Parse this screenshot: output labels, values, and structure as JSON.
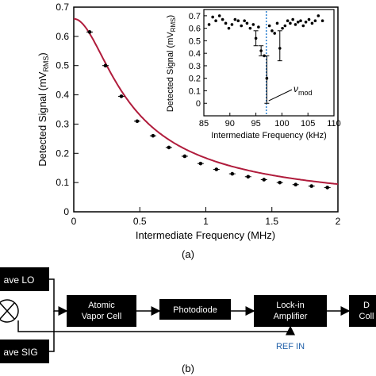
{
  "chart_data": [
    {
      "type": "scatter",
      "panel": "main",
      "xlabel": "Intermediate Frequency (MHz)",
      "ylabel_main": "Detected Signal (mV",
      "ylabel_sub": "RMS",
      "ylabel_close": ")",
      "xlim": [
        0,
        2
      ],
      "ylim": [
        0,
        0.7
      ],
      "xticks": [
        "0",
        "0.5",
        "1",
        "1.5",
        "2"
      ],
      "yticks": [
        "0",
        "0.1",
        "0.2",
        "0.3",
        "0.4",
        "0.5",
        "0.6",
        "0.7"
      ],
      "series": [
        {
          "points": [
            {
              "x": 0.12,
              "y": 0.615
            },
            {
              "x": 0.24,
              "y": 0.5
            },
            {
              "x": 0.36,
              "y": 0.395
            },
            {
              "x": 0.48,
              "y": 0.31
            },
            {
              "x": 0.6,
              "y": 0.26
            },
            {
              "x": 0.72,
              "y": 0.22
            },
            {
              "x": 0.84,
              "y": 0.19
            },
            {
              "x": 0.96,
              "y": 0.165
            },
            {
              "x": 1.08,
              "y": 0.145
            },
            {
              "x": 1.2,
              "y": 0.13
            },
            {
              "x": 1.32,
              "y": 0.12
            },
            {
              "x": 1.44,
              "y": 0.11
            },
            {
              "x": 1.56,
              "y": 0.1
            },
            {
              "x": 1.68,
              "y": 0.093
            },
            {
              "x": 1.8,
              "y": 0.088
            },
            {
              "x": 1.92,
              "y": 0.083
            }
          ]
        },
        {
          "fit_curve": true,
          "color": "#b01c3c",
          "model": "a/sqrt(1+(x/b)^2)+c",
          "params": {
            "a": 0.66,
            "b": 0.29,
            "c": 0.0
          }
        }
      ]
    },
    {
      "type": "scatter",
      "panel": "inset",
      "xlabel": "Intermediate Frequency (kHz)",
      "ylabel_main": "Detected Signal (mV",
      "ylabel_sub": "RMS",
      "ylabel_close": ")",
      "xlim": [
        85,
        110
      ],
      "ylim": [
        -0.1,
        0.75
      ],
      "xticks": [
        "85",
        "90",
        "95",
        "100",
        "105",
        "110"
      ],
      "yticks": [
        "0",
        "0.1",
        "0.2",
        "0.3",
        "0.4",
        "0.5",
        "0.6",
        "0.7"
      ],
      "annotation": {
        "label": "ν",
        "sub": "mod",
        "x": 97
      },
      "series": [
        {
          "points": [
            {
              "x": 86.0,
              "y": 0.63
            },
            {
              "x": 86.7,
              "y": 0.69
            },
            {
              "x": 87.3,
              "y": 0.66
            },
            {
              "x": 88.0,
              "y": 0.7
            },
            {
              "x": 88.6,
              "y": 0.67
            },
            {
              "x": 89.2,
              "y": 0.64
            },
            {
              "x": 89.8,
              "y": 0.6
            },
            {
              "x": 90.4,
              "y": 0.63
            },
            {
              "x": 91.0,
              "y": 0.67
            },
            {
              "x": 91.6,
              "y": 0.66
            },
            {
              "x": 92.2,
              "y": 0.62
            },
            {
              "x": 92.8,
              "y": 0.66
            },
            {
              "x": 93.3,
              "y": 0.64
            },
            {
              "x": 93.9,
              "y": 0.6
            },
            {
              "x": 94.5,
              "y": 0.63
            },
            {
              "x": 95.0,
              "y": 0.52
            },
            {
              "x": 95.5,
              "y": 0.61
            },
            {
              "x": 96.0,
              "y": 0.42
            },
            {
              "x": 96.6,
              "y": 0.38
            },
            {
              "x": 97.1,
              "y": 0.2
            },
            {
              "x": 97.6,
              "y": 0.62
            },
            {
              "x": 98.1,
              "y": 0.58
            },
            {
              "x": 98.6,
              "y": 0.56
            },
            {
              "x": 99.1,
              "y": 0.64
            },
            {
              "x": 99.6,
              "y": 0.44
            },
            {
              "x": 100.1,
              "y": 0.6
            },
            {
              "x": 100.6,
              "y": 0.62
            },
            {
              "x": 101.1,
              "y": 0.66
            },
            {
              "x": 101.6,
              "y": 0.64
            },
            {
              "x": 102.1,
              "y": 0.67
            },
            {
              "x": 102.6,
              "y": 0.63
            },
            {
              "x": 103.1,
              "y": 0.65
            },
            {
              "x": 103.6,
              "y": 0.66
            },
            {
              "x": 104.1,
              "y": 0.62
            },
            {
              "x": 104.6,
              "y": 0.65
            },
            {
              "x": 105.2,
              "y": 0.67
            },
            {
              "x": 105.8,
              "y": 0.64
            },
            {
              "x": 106.4,
              "y": 0.66
            },
            {
              "x": 107.0,
              "y": 0.7
            },
            {
              "x": 107.8,
              "y": 0.66
            }
          ],
          "error_bars": [
            {
              "x": 95.0,
              "y": 0.52,
              "lo": 0.46,
              "hi": 0.58
            },
            {
              "x": 96.0,
              "y": 0.42,
              "lo": 0.38,
              "hi": 0.46
            },
            {
              "x": 97.1,
              "y": 0.2,
              "lo": 0.0,
              "hi": 0.38
            },
            {
              "x": 99.6,
              "y": 0.44,
              "lo": 0.34,
              "hi": 0.58
            }
          ]
        }
      ]
    }
  ],
  "panel_labels": {
    "a": "(a)",
    "b": "(b)"
  },
  "diagram": {
    "lo_label": "ave LO",
    "sig_label": "ave SIG",
    "vapor_cell": [
      "Atomic",
      "Vapor Cell"
    ],
    "photodiode": "Photodiode",
    "lockin": [
      "Lock-in",
      "Amplifier"
    ],
    "daq": [
      "D",
      "Coll"
    ],
    "ref_in": "REF IN"
  }
}
